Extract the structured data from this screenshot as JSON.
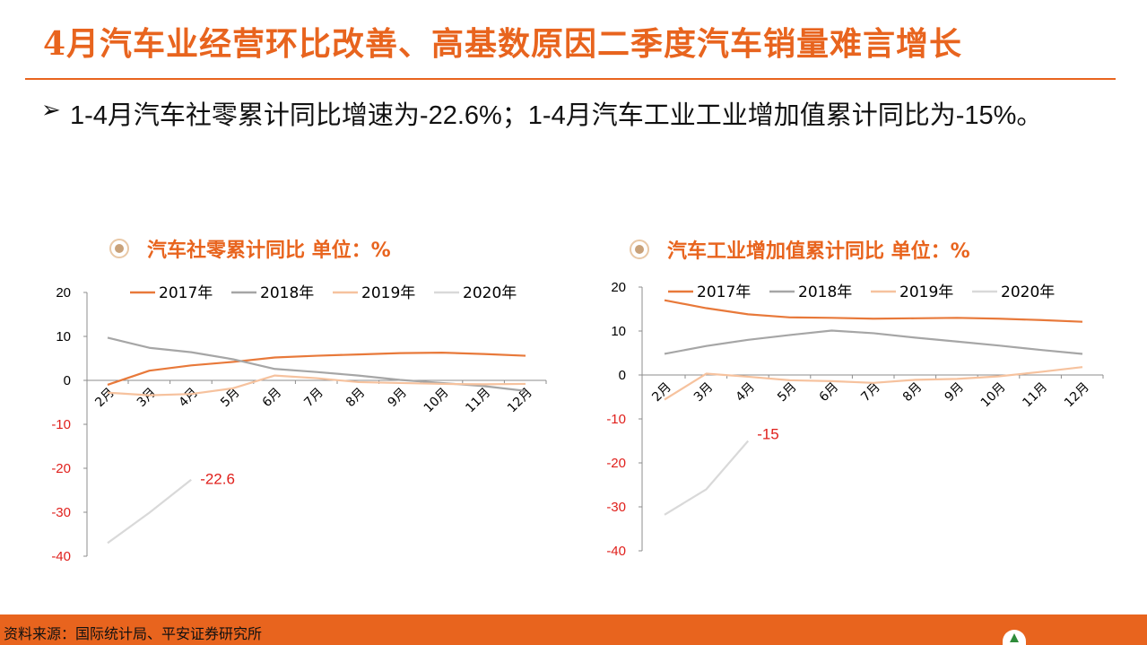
{
  "title": "4月汽车业经营环比改善、高基数原因二季度汽车销量难言增长",
  "bullet": {
    "marker": "➢",
    "text": "1-4月汽车社零累计同比增速为-22.6%；1-4月汽车工业工业增加值累计同比为-15%。"
  },
  "footer": {
    "source": "资料来源：国际统计局、平安证券研究所"
  },
  "chart_data": [
    {
      "type": "line",
      "title": "汽车社零累计同比  单位：%",
      "categories": [
        "2月",
        "3月",
        "4月",
        "5月",
        "6月",
        "7月",
        "8月",
        "9月",
        "10月",
        "11月",
        "12月"
      ],
      "ylim": [
        -40,
        20
      ],
      "yticks": [
        20,
        10,
        0,
        -10,
        -20,
        -30,
        -40
      ],
      "legend_position": "top",
      "annotation": {
        "series": "2020年",
        "text": "-22.6"
      },
      "series": [
        {
          "name": "2017年",
          "color": "#e8793a",
          "values": [
            -1,
            2.2,
            3.4,
            4.2,
            5.2,
            5.6,
            5.9,
            6.2,
            6.3,
            6.0,
            5.6
          ]
        },
        {
          "name": "2018年",
          "color": "#a6a6a6",
          "values": [
            9.7,
            7.4,
            6.4,
            4.8,
            2.6,
            1.9,
            1.1,
            0.1,
            -0.6,
            -1.3,
            -2.4
          ]
        },
        {
          "name": "2019年",
          "color": "#f6c29e",
          "values": [
            -2.8,
            -3.4,
            -3.1,
            -1.8,
            1.1,
            0.5,
            -0.4,
            -0.6,
            -0.8,
            -0.9,
            -0.8
          ]
        },
        {
          "name": "2020年",
          "color": "#d9d9d9",
          "values": [
            -37,
            -30.1,
            -22.6,
            null,
            null,
            null,
            null,
            null,
            null,
            null,
            null
          ]
        }
      ]
    },
    {
      "type": "line",
      "title": "汽车工业增加值累计同比  单位：%",
      "categories": [
        "2月",
        "3月",
        "4月",
        "5月",
        "6月",
        "7月",
        "8月",
        "9月",
        "10月",
        "11月",
        "12月"
      ],
      "ylim": [
        -40,
        20
      ],
      "yticks": [
        20,
        10,
        0,
        -10,
        -20,
        -30,
        -40
      ],
      "legend_position": "top",
      "annotation": {
        "series": "2020年",
        "text": "-15"
      },
      "series": [
        {
          "name": "2017年",
          "color": "#e8793a",
          "values": [
            17,
            15.2,
            13.8,
            13.1,
            13.0,
            12.8,
            12.9,
            13.0,
            12.8,
            12.5,
            12.1
          ]
        },
        {
          "name": "2018年",
          "color": "#a6a6a6",
          "values": [
            4.8,
            6.6,
            8.0,
            9.1,
            10.1,
            9.5,
            8.5,
            7.6,
            6.7,
            5.7,
            4.8
          ]
        },
        {
          "name": "2019年",
          "color": "#f6c29e",
          "values": [
            -5.6,
            0.3,
            -0.4,
            -1.2,
            -1.4,
            -1.8,
            -1.1,
            -0.9,
            -0.3,
            0.7,
            1.8
          ]
        },
        {
          "name": "2020年",
          "color": "#d9d9d9",
          "values": [
            -31.8,
            -26,
            -15,
            null,
            null,
            null,
            null,
            null,
            null,
            null,
            null
          ]
        }
      ]
    }
  ]
}
